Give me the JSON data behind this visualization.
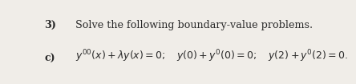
{
  "title_num": "3)",
  "title_rest": "Solve the following boundary-value problems.",
  "label": "c)",
  "math_expr": "$y^{\\prime\\prime}(x) + \\lambda y(x) = 0;\\quad y(0) + y^{\\prime}(0) = 0;\\quad y(2) + y^{\\prime}(2) = 0.$",
  "bg_color": "#f0ede8",
  "text_color": "#2a2a2a",
  "title_fontsize": 9.2,
  "body_fontsize": 9.0
}
